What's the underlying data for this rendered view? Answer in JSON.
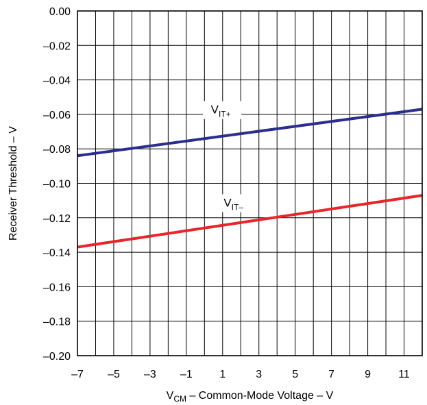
{
  "chart_data": {
    "type": "line",
    "xlabel": {
      "main": "V",
      "sub": "CM",
      "rest": " – Common-Mode Voltage – V"
    },
    "ylabel": "Receiver Threshold – V",
    "xlim": [
      -7,
      12
    ],
    "ylim": [
      -0.2,
      0.0
    ],
    "x_ticks": [
      -7,
      -6,
      -5,
      -4,
      -3,
      -2,
      -1,
      0,
      1,
      2,
      3,
      4,
      5,
      6,
      7,
      8,
      9,
      10,
      11,
      12
    ],
    "x_tick_labels": [
      {
        "value": -7,
        "text": "–7"
      },
      {
        "value": -5,
        "text": "–5"
      },
      {
        "value": -3,
        "text": "–3"
      },
      {
        "value": -1,
        "text": "–1"
      },
      {
        "value": 1,
        "text": "1"
      },
      {
        "value": 3,
        "text": "3"
      },
      {
        "value": 5,
        "text": "5"
      },
      {
        "value": 7,
        "text": "7"
      },
      {
        "value": 9,
        "text": "9"
      },
      {
        "value": 11,
        "text": "11"
      }
    ],
    "y_ticks": [
      {
        "value": 0.0,
        "text": "0.00"
      },
      {
        "value": -0.02,
        "text": "–0.02"
      },
      {
        "value": -0.04,
        "text": "–0.04"
      },
      {
        "value": -0.06,
        "text": "–0.06"
      },
      {
        "value": -0.08,
        "text": "–0.08"
      },
      {
        "value": -0.1,
        "text": "–0.10"
      },
      {
        "value": -0.12,
        "text": "–0.12"
      },
      {
        "value": -0.14,
        "text": "–0.14"
      },
      {
        "value": -0.16,
        "text": "–0.16"
      },
      {
        "value": -0.18,
        "text": "–0.18"
      },
      {
        "value": -0.2,
        "text": "–0.20"
      }
    ],
    "grid": true,
    "legend": "none",
    "series": [
      {
        "label": {
          "main": "V",
          "sub": "IT+"
        },
        "color": "#2b2e8f",
        "x": [
          -7,
          12
        ],
        "y": [
          -0.084,
          -0.057
        ],
        "label_at": {
          "x": 0.9,
          "y": -0.0595
        }
      },
      {
        "label": {
          "main": "V",
          "sub": "IT–"
        },
        "color": "#e8252a",
        "x": [
          -7,
          12
        ],
        "y": [
          -0.137,
          -0.107
        ],
        "label_at": {
          "x": 1.6,
          "y": -0.1135
        }
      }
    ]
  }
}
